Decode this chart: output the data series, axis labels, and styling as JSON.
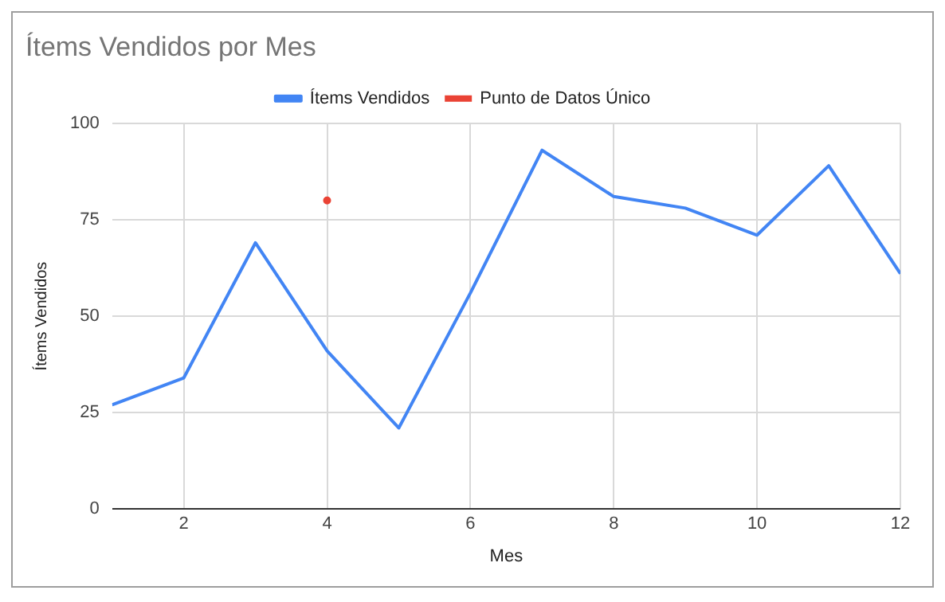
{
  "chart_data": {
    "type": "line",
    "title": "Ítems Vendidos por Mes",
    "xlabel": "Mes",
    "ylabel": "Ítems Vendidos",
    "x": [
      1,
      2,
      3,
      4,
      5,
      6,
      7,
      8,
      9,
      10,
      11,
      12
    ],
    "series": [
      {
        "name": "Ítems Vendidos",
        "color": "#4285f4",
        "values": [
          27,
          34,
          69,
          41,
          21,
          56,
          93,
          81,
          78,
          71,
          89,
          61
        ],
        "marker": "none"
      },
      {
        "name": "Punto de Datos Único",
        "color": "#ea4335",
        "type": "scatter",
        "x": [
          4
        ],
        "values": [
          80
        ],
        "marker": "circle"
      }
    ],
    "xlim": [
      1,
      12
    ],
    "xticks": [
      2,
      4,
      6,
      8,
      10,
      12
    ],
    "ylim": [
      0,
      100
    ],
    "yticks": [
      0,
      25,
      50,
      75,
      100
    ],
    "grid": true,
    "legend": "top",
    "line_style": "solid"
  }
}
